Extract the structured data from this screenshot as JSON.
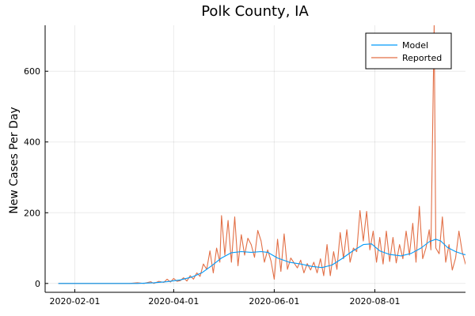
{
  "chart_data": {
    "type": "line",
    "title": "Polk County, IA",
    "xlabel": "",
    "ylabel": "New Cases Per Day",
    "x_type": "date",
    "xlim": [
      "2020-01-14",
      "2020-09-25"
    ],
    "ylim": [
      -25,
      730
    ],
    "x_ticks": [
      "2020-02-01",
      "2020-04-01",
      "2020-06-01",
      "2020-08-01"
    ],
    "y_ticks": [
      0,
      200,
      400,
      600
    ],
    "grid": true,
    "legend": "top-right",
    "series": [
      {
        "name": "Model",
        "color": "#009AFA",
        "points": [
          [
            "2020-01-22",
            0
          ],
          [
            "2020-02-15",
            0
          ],
          [
            "2020-03-10",
            0
          ],
          [
            "2020-03-20",
            2
          ],
          [
            "2020-03-28",
            5
          ],
          [
            "2020-04-05",
            10
          ],
          [
            "2020-04-12",
            18
          ],
          [
            "2020-04-18",
            30
          ],
          [
            "2020-04-24",
            50
          ],
          [
            "2020-04-30",
            72
          ],
          [
            "2020-05-06",
            87
          ],
          [
            "2020-05-12",
            90
          ],
          [
            "2020-05-18",
            88
          ],
          [
            "2020-05-24",
            90
          ],
          [
            "2020-05-28",
            88
          ],
          [
            "2020-06-03",
            72
          ],
          [
            "2020-06-10",
            60
          ],
          [
            "2020-06-17",
            55
          ],
          [
            "2020-06-24",
            48
          ],
          [
            "2020-06-30",
            45
          ],
          [
            "2020-07-06",
            52
          ],
          [
            "2020-07-12",
            70
          ],
          [
            "2020-07-18",
            90
          ],
          [
            "2020-07-25",
            110
          ],
          [
            "2020-07-30",
            112
          ],
          [
            "2020-08-04",
            92
          ],
          [
            "2020-08-10",
            82
          ],
          [
            "2020-08-17",
            78
          ],
          [
            "2020-08-23",
            85
          ],
          [
            "2020-08-29",
            100
          ],
          [
            "2020-09-03",
            118
          ],
          [
            "2020-09-07",
            125
          ],
          [
            "2020-09-10",
            120
          ],
          [
            "2020-09-14",
            102
          ],
          [
            "2020-09-19",
            90
          ],
          [
            "2020-09-24",
            82
          ],
          [
            "2020-09-28",
            80
          ]
        ]
      },
      {
        "name": "Reported",
        "color": "#E26F46",
        "points": [
          [
            "2020-01-22",
            0
          ],
          [
            "2020-02-15",
            0
          ],
          [
            "2020-03-05",
            0
          ],
          [
            "2020-03-10",
            2
          ],
          [
            "2020-03-14",
            0
          ],
          [
            "2020-03-18",
            5
          ],
          [
            "2020-03-20",
            0
          ],
          [
            "2020-03-23",
            6
          ],
          [
            "2020-03-26",
            3
          ],
          [
            "2020-03-28",
            12
          ],
          [
            "2020-03-30",
            4
          ],
          [
            "2020-04-01",
            14
          ],
          [
            "2020-04-03",
            6
          ],
          [
            "2020-04-05",
            8
          ],
          [
            "2020-04-07",
            16
          ],
          [
            "2020-04-09",
            7
          ],
          [
            "2020-04-11",
            22
          ],
          [
            "2020-04-13",
            12
          ],
          [
            "2020-04-15",
            30
          ],
          [
            "2020-04-17",
            20
          ],
          [
            "2020-04-19",
            55
          ],
          [
            "2020-04-21",
            40
          ],
          [
            "2020-04-23",
            92
          ],
          [
            "2020-04-25",
            30
          ],
          [
            "2020-04-27",
            100
          ],
          [
            "2020-04-29",
            60
          ],
          [
            "2020-04-30",
            192
          ],
          [
            "2020-05-02",
            80
          ],
          [
            "2020-05-04",
            178
          ],
          [
            "2020-05-06",
            60
          ],
          [
            "2020-05-08",
            188
          ],
          [
            "2020-05-10",
            50
          ],
          [
            "2020-05-12",
            138
          ],
          [
            "2020-05-14",
            80
          ],
          [
            "2020-05-16",
            128
          ],
          [
            "2020-05-18",
            110
          ],
          [
            "2020-05-20",
            74
          ],
          [
            "2020-05-22",
            150
          ],
          [
            "2020-05-24",
            120
          ],
          [
            "2020-05-26",
            60
          ],
          [
            "2020-05-28",
            95
          ],
          [
            "2020-05-30",
            64
          ],
          [
            "2020-06-01",
            12
          ],
          [
            "2020-06-03",
            125
          ],
          [
            "2020-06-05",
            34
          ],
          [
            "2020-06-07",
            140
          ],
          [
            "2020-06-09",
            40
          ],
          [
            "2020-06-11",
            72
          ],
          [
            "2020-06-13",
            58
          ],
          [
            "2020-06-15",
            44
          ],
          [
            "2020-06-17",
            66
          ],
          [
            "2020-06-19",
            30
          ],
          [
            "2020-06-21",
            56
          ],
          [
            "2020-06-23",
            38
          ],
          [
            "2020-06-25",
            60
          ],
          [
            "2020-06-27",
            30
          ],
          [
            "2020-06-29",
            70
          ],
          [
            "2020-07-01",
            22
          ],
          [
            "2020-07-03",
            110
          ],
          [
            "2020-07-05",
            22
          ],
          [
            "2020-07-07",
            90
          ],
          [
            "2020-07-09",
            40
          ],
          [
            "2020-07-11",
            144
          ],
          [
            "2020-07-13",
            70
          ],
          [
            "2020-07-15",
            152
          ],
          [
            "2020-07-17",
            60
          ],
          [
            "2020-07-19",
            100
          ],
          [
            "2020-07-21",
            90
          ],
          [
            "2020-07-23",
            206
          ],
          [
            "2020-07-25",
            120
          ],
          [
            "2020-07-27",
            204
          ],
          [
            "2020-07-29",
            95
          ],
          [
            "2020-07-31",
            148
          ],
          [
            "2020-08-02",
            60
          ],
          [
            "2020-08-04",
            130
          ],
          [
            "2020-08-06",
            55
          ],
          [
            "2020-08-08",
            148
          ],
          [
            "2020-08-10",
            62
          ],
          [
            "2020-08-12",
            130
          ],
          [
            "2020-08-14",
            58
          ],
          [
            "2020-08-16",
            110
          ],
          [
            "2020-08-18",
            70
          ],
          [
            "2020-08-20",
            148
          ],
          [
            "2020-08-22",
            80
          ],
          [
            "2020-08-24",
            170
          ],
          [
            "2020-08-26",
            60
          ],
          [
            "2020-08-28",
            218
          ],
          [
            "2020-08-30",
            70
          ],
          [
            "2020-09-01",
            100
          ],
          [
            "2020-09-03",
            152
          ],
          [
            "2020-09-04",
            95
          ],
          [
            "2020-09-06",
            730
          ],
          [
            "2020-09-07",
            100
          ],
          [
            "2020-09-09",
            84
          ],
          [
            "2020-09-11",
            188
          ],
          [
            "2020-09-13",
            60
          ],
          [
            "2020-09-15",
            110
          ],
          [
            "2020-09-17",
            38
          ],
          [
            "2020-09-19",
            72
          ],
          [
            "2020-09-21",
            148
          ],
          [
            "2020-09-23",
            90
          ],
          [
            "2020-09-25",
            55
          ],
          [
            "2020-09-27",
            100
          ],
          [
            "2020-09-29",
            60
          ],
          [
            "2020-10-01",
            148
          ],
          [
            "2020-10-03",
            90
          ],
          [
            "2020-10-05",
            50
          ]
        ]
      }
    ]
  }
}
